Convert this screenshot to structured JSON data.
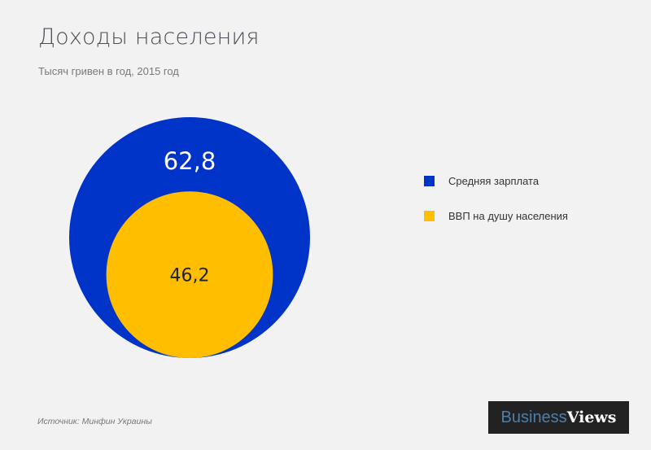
{
  "chart_data": {
    "type": "nested-bubble",
    "title": "Доходы населения",
    "subtitle": "Тысяч гривен в год, 2015 год",
    "series": [
      {
        "name": "Средняя зарплата",
        "value": 62.8,
        "label": "62,8",
        "color": "#0033c8"
      },
      {
        "name": "ВВП на душу населения",
        "value": 46.2,
        "label": "46,2",
        "color": "#ffbf00"
      }
    ],
    "legend_position": "right"
  },
  "footer": {
    "source": "Источник:  Минфин Украины"
  },
  "logo": {
    "part1": "Business",
    "part2": "Views"
  }
}
